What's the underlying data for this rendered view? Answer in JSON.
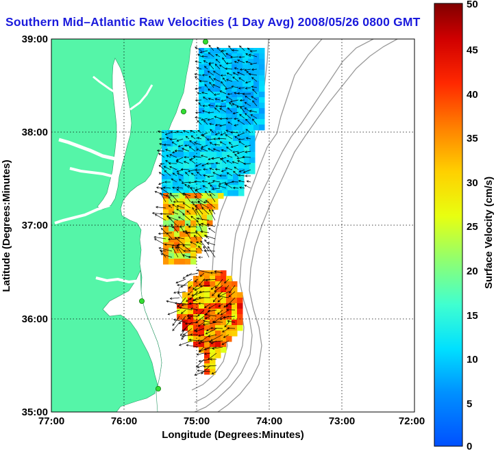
{
  "title": "Southern Mid–Atlantic Raw Velocities (1 Day Avg) 2008/05/26 0800 GMT",
  "colors": {
    "land": "#55f5a8",
    "title": "#1a1adc",
    "station": "#33dd33",
    "arrow": "#000000"
  },
  "map": {
    "x_axis": {
      "label": "Longitude (Degrees:Minutes)",
      "ticks": [
        "77:00",
        "76:00",
        "75:00",
        "74:00",
        "73:00",
        "72:00"
      ],
      "range": [
        -77,
        -72
      ]
    },
    "y_axis": {
      "label": "Latitude (Degrees:Minutes)",
      "ticks": [
        "39:00",
        "38:00",
        "37:00",
        "36:00",
        "35:00"
      ],
      "range": [
        35,
        39
      ]
    },
    "grid": "dotted",
    "stations": [
      "station-north",
      "station-delmarva",
      "station-outer-banks",
      "station-hatteras"
    ]
  },
  "colorbar": {
    "label": "Surface Velocity (cm/s)",
    "ticks": [
      "50",
      "45",
      "40",
      "35",
      "30",
      "25",
      "20",
      "15",
      "10",
      "5",
      "0"
    ],
    "range": [
      0,
      50
    ]
  }
}
